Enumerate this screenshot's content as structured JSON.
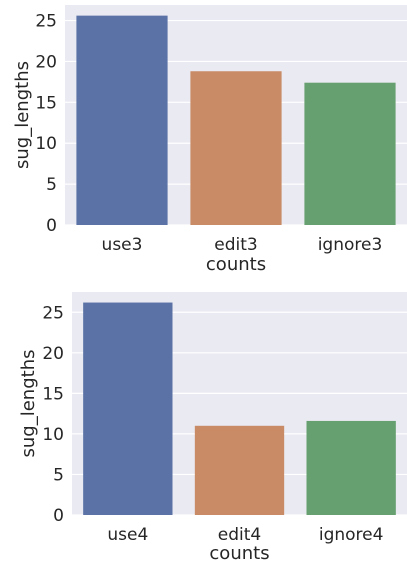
{
  "chart_data": [
    {
      "type": "bar",
      "categories": [
        "use3",
        "edit3",
        "ignore3"
      ],
      "values": [
        25.6,
        18.8,
        17.4
      ],
      "colors": [
        "#5a72a6",
        "#c98b65",
        "#67a070"
      ],
      "xlabel": "counts",
      "ylabel": "sug_lengths",
      "ylim": [
        0,
        26.9
      ],
      "yticks": [
        0,
        5,
        10,
        15,
        20,
        25
      ],
      "grid": true
    },
    {
      "type": "bar",
      "categories": [
        "use4",
        "edit4",
        "ignore4"
      ],
      "values": [
        26.2,
        11.0,
        11.6
      ],
      "colors": [
        "#5a72a6",
        "#c98b65",
        "#67a070"
      ],
      "xlabel": "counts",
      "ylabel": "sug_lengths",
      "ylim": [
        0,
        27.5
      ],
      "yticks": [
        0,
        5,
        10,
        15,
        20,
        25
      ],
      "grid": true
    }
  ]
}
